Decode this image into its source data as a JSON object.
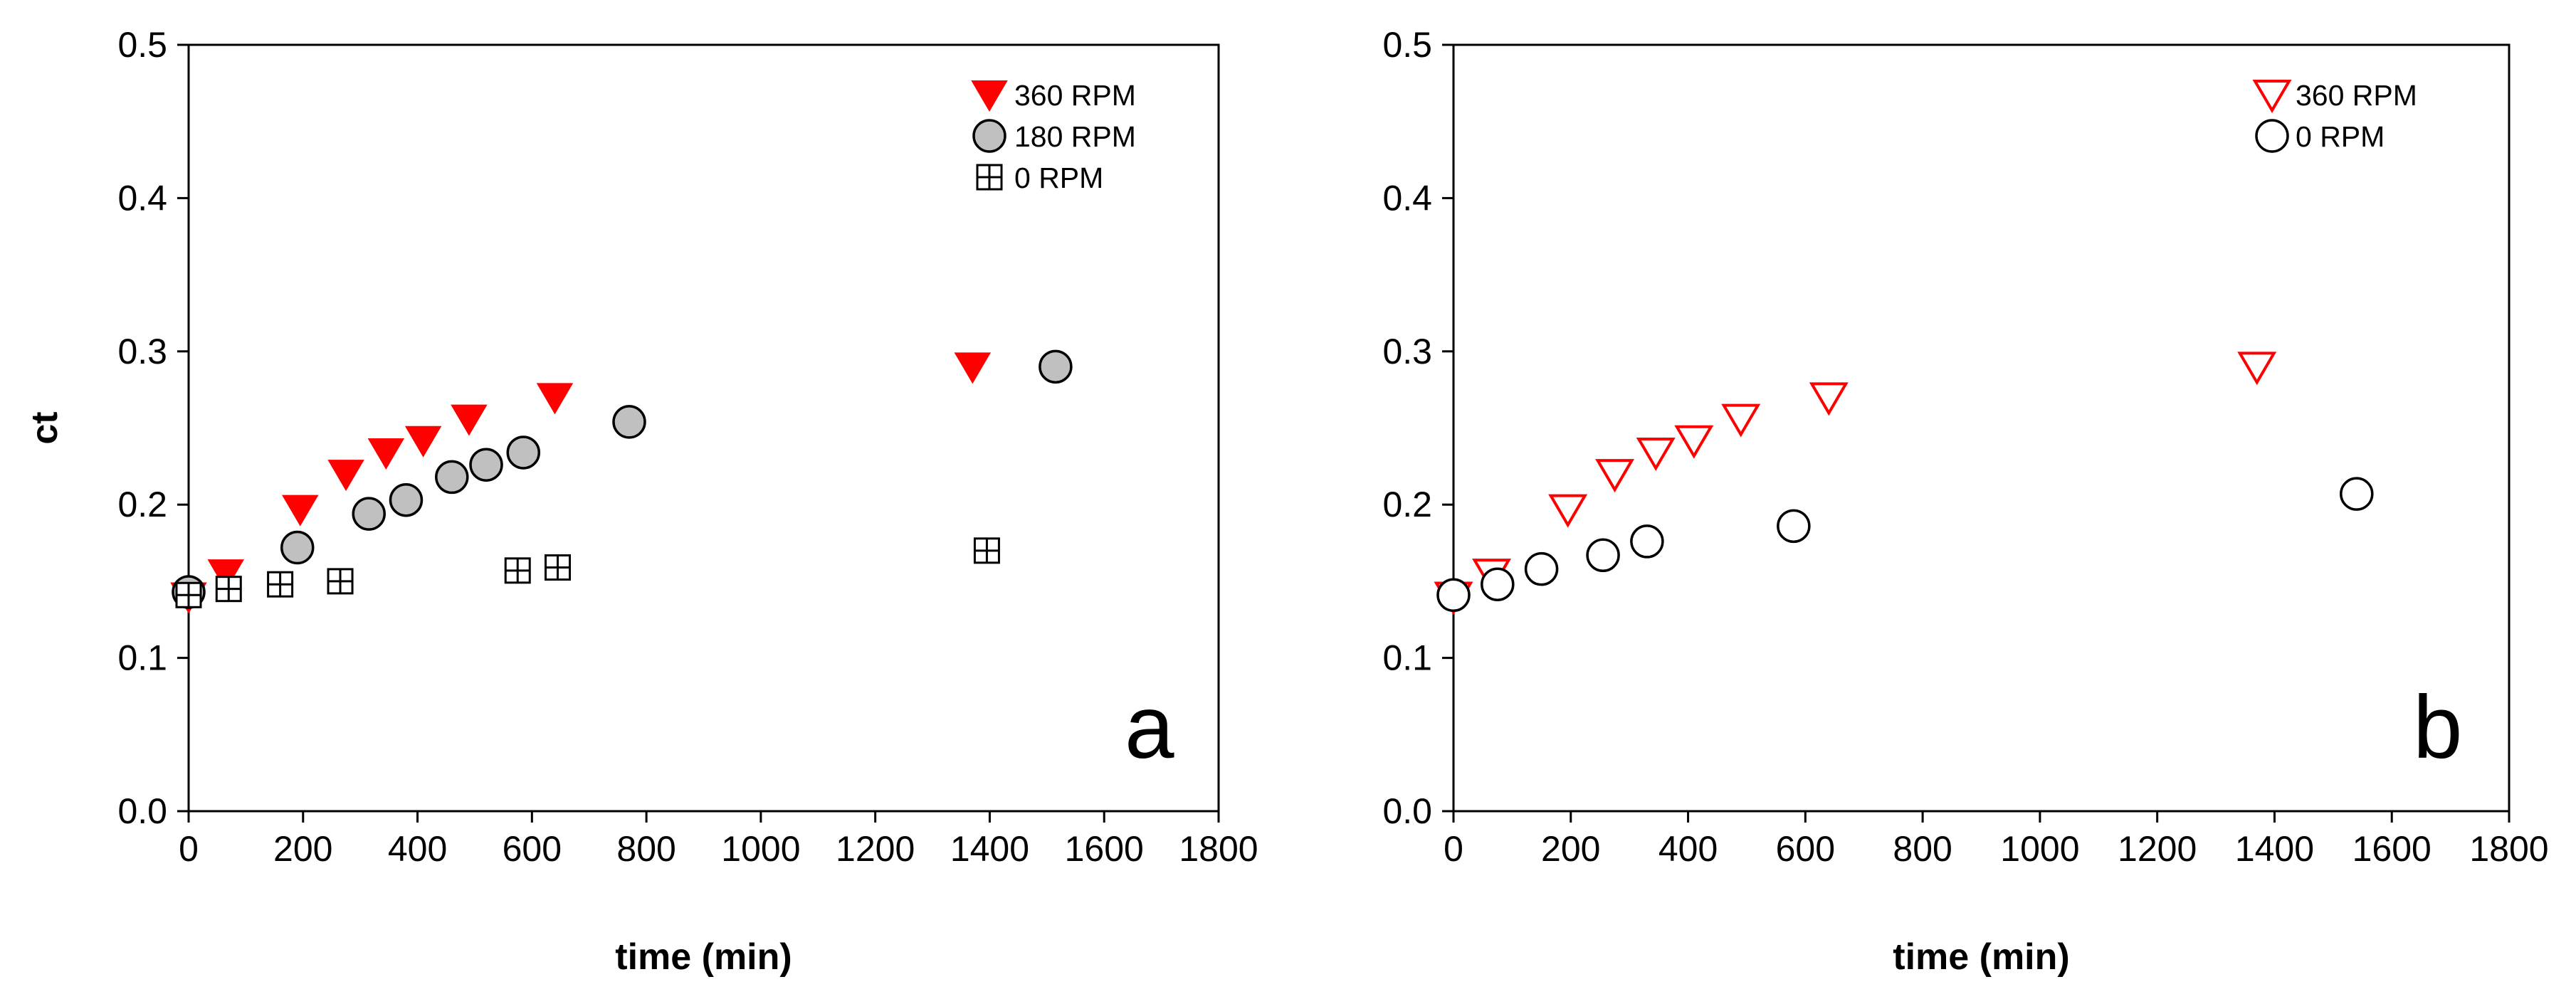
{
  "colors": {
    "red": "#ff0000",
    "gray_fill": "#c0c0c0",
    "black": "#000000"
  },
  "chart_data": [
    {
      "type": "scatter",
      "panel_label": "a",
      "xlabel": "time (min)",
      "ylabel": "ct",
      "xlim": [
        0,
        1800
      ],
      "ylim": [
        0,
        0.5
      ],
      "xticks": [
        0,
        200,
        400,
        600,
        800,
        1000,
        1200,
        1400,
        1600,
        1800
      ],
      "yticks": [
        0.0,
        0.1,
        0.2,
        0.3,
        0.4,
        0.5
      ],
      "ytick_labels": [
        "0.0",
        "0.1",
        "0.2",
        "0.3",
        "0.4",
        "0.5"
      ],
      "grid": false,
      "legend_position": "top-right",
      "series": [
        {
          "name": "360 RPM",
          "marker": "triangle-down-filled",
          "color": "#ff0000",
          "points": [
            [
              0,
              0.14
            ],
            [
              65,
              0.155
            ],
            [
              195,
              0.197
            ],
            [
              275,
              0.22
            ],
            [
              345,
              0.234
            ],
            [
              410,
              0.242
            ],
            [
              490,
              0.256
            ],
            [
              640,
              0.27
            ],
            [
              1370,
              0.29
            ]
          ]
        },
        {
          "name": "180 RPM",
          "marker": "circle-gray",
          "color": "#000000",
          "points": [
            [
              0,
              0.143
            ],
            [
              190,
              0.172
            ],
            [
              315,
              0.194
            ],
            [
              380,
              0.203
            ],
            [
              460,
              0.218
            ],
            [
              520,
              0.226
            ],
            [
              585,
              0.234
            ],
            [
              770,
              0.254
            ],
            [
              1515,
              0.29
            ]
          ]
        },
        {
          "name": "0 RPM",
          "marker": "square-plus",
          "color": "#000000",
          "points": [
            [
              0,
              0.141
            ],
            [
              70,
              0.145
            ],
            [
              160,
              0.148
            ],
            [
              265,
              0.15
            ],
            [
              575,
              0.157
            ],
            [
              645,
              0.159
            ],
            [
              1395,
              0.17
            ]
          ]
        }
      ]
    },
    {
      "type": "scatter",
      "panel_label": "b",
      "xlabel": "time (min)",
      "ylabel": "",
      "xlim": [
        0,
        1800
      ],
      "ylim": [
        0,
        0.5
      ],
      "xticks": [
        0,
        200,
        400,
        600,
        800,
        1000,
        1200,
        1400,
        1600,
        1800
      ],
      "yticks": [
        0.0,
        0.1,
        0.2,
        0.3,
        0.4,
        0.5
      ],
      "ytick_labels": [
        "0.0",
        "0.1",
        "0.2",
        "0.3",
        "0.4",
        "0.5"
      ],
      "grid": false,
      "legend_position": "top-right",
      "series": [
        {
          "name": "360 RPM",
          "marker": "triangle-down-open",
          "color": "#ff0000",
          "points": [
            [
              0,
              0.14
            ],
            [
              65,
              0.155
            ],
            [
              195,
              0.197
            ],
            [
              275,
              0.22
            ],
            [
              345,
              0.234
            ],
            [
              410,
              0.242
            ],
            [
              490,
              0.256
            ],
            [
              640,
              0.27
            ],
            [
              1370,
              0.29
            ]
          ]
        },
        {
          "name": "0 RPM",
          "marker": "circle-open",
          "color": "#000000",
          "points": [
            [
              0,
              0.141
            ],
            [
              75,
              0.148
            ],
            [
              150,
              0.158
            ],
            [
              255,
              0.167
            ],
            [
              330,
              0.176
            ],
            [
              580,
              0.186
            ],
            [
              1540,
              0.207
            ]
          ]
        }
      ]
    }
  ]
}
